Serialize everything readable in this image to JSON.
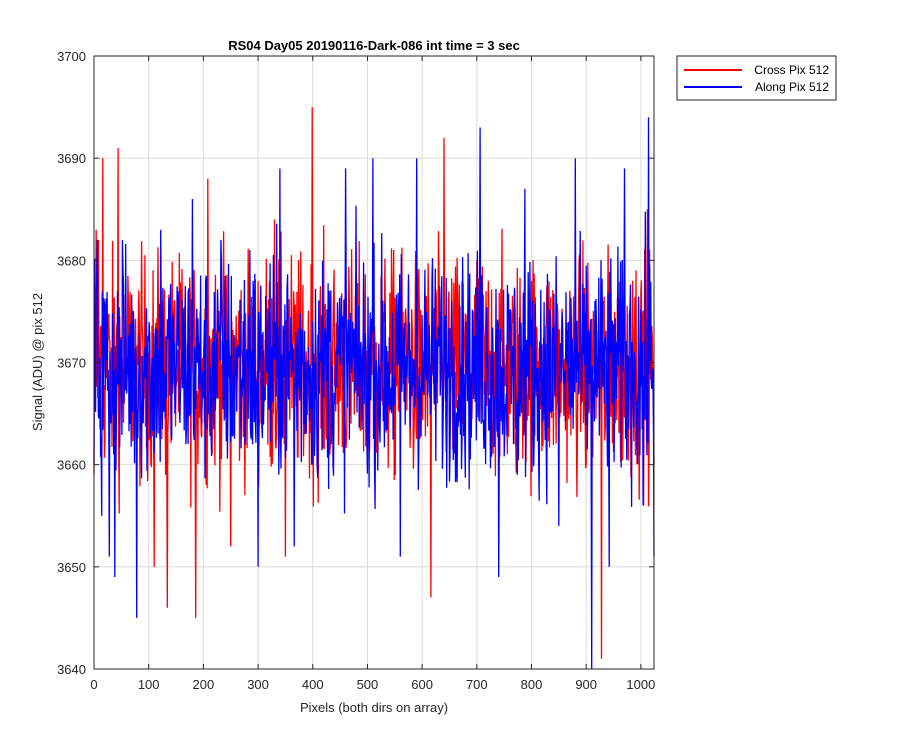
{
  "chart_data": {
    "type": "line",
    "title": "RS04 Day05 20190116-Dark-086 int time = 3 sec",
    "xlabel": "Pixels (both dirs on array)",
    "ylabel": "Signal (ADU) @ pix 512",
    "xlim": [
      0,
      1024
    ],
    "ylim": [
      3640,
      3700
    ],
    "xticks": [
      "0",
      "100",
      "200",
      "300",
      "400",
      "500",
      "600",
      "700",
      "800",
      "900",
      "1000"
    ],
    "yticks": [
      "3640",
      "3650",
      "3660",
      "3670",
      "3680",
      "3690",
      "3700"
    ],
    "grid": true,
    "legend_position": "outside-top-right",
    "series": [
      {
        "name": "Cross Pix 512",
        "color": "#ff0000",
        "x": [
          0,
          4,
          8,
          16,
          30,
          44,
          78,
          110,
          122,
          134,
          186,
          208,
          250,
          285,
          330,
          350,
          399,
          470,
          575,
          616,
          640,
          700,
          770,
          800,
          900,
          928,
          985,
          1012,
          1024
        ],
        "values": [
          3659,
          3683,
          3682,
          3690,
          3664,
          3691,
          3662,
          3650,
          3680,
          3646,
          3645,
          3688,
          3652,
          3666,
          3684,
          3651,
          3695,
          3664,
          3678,
          3647,
          3692,
          3680,
          3662,
          3678,
          3660,
          3641,
          3678,
          3685,
          3660
        ]
      },
      {
        "name": "Along Pix 512",
        "color": "#0000ff",
        "x": [
          0,
          6,
          14,
          28,
          38,
          52,
          78,
          122,
          180,
          232,
          285,
          300,
          340,
          366,
          430,
          460,
          510,
          560,
          590,
          680,
          706,
          740,
          774,
          788,
          850,
          880,
          910,
          942,
          970,
          1004,
          1014,
          1024
        ],
        "values": [
          3660,
          3682,
          3655,
          3651,
          3649,
          3682,
          3645,
          3683,
          3686,
          3682,
          3681,
          3650,
          3689,
          3652,
          3677,
          3689,
          3690,
          3651,
          3690,
          3674,
          3693,
          3649,
          3659,
          3687,
          3654,
          3690,
          3640,
          3650,
          3689,
          3656,
          3694,
          3651
        ]
      }
    ]
  }
}
